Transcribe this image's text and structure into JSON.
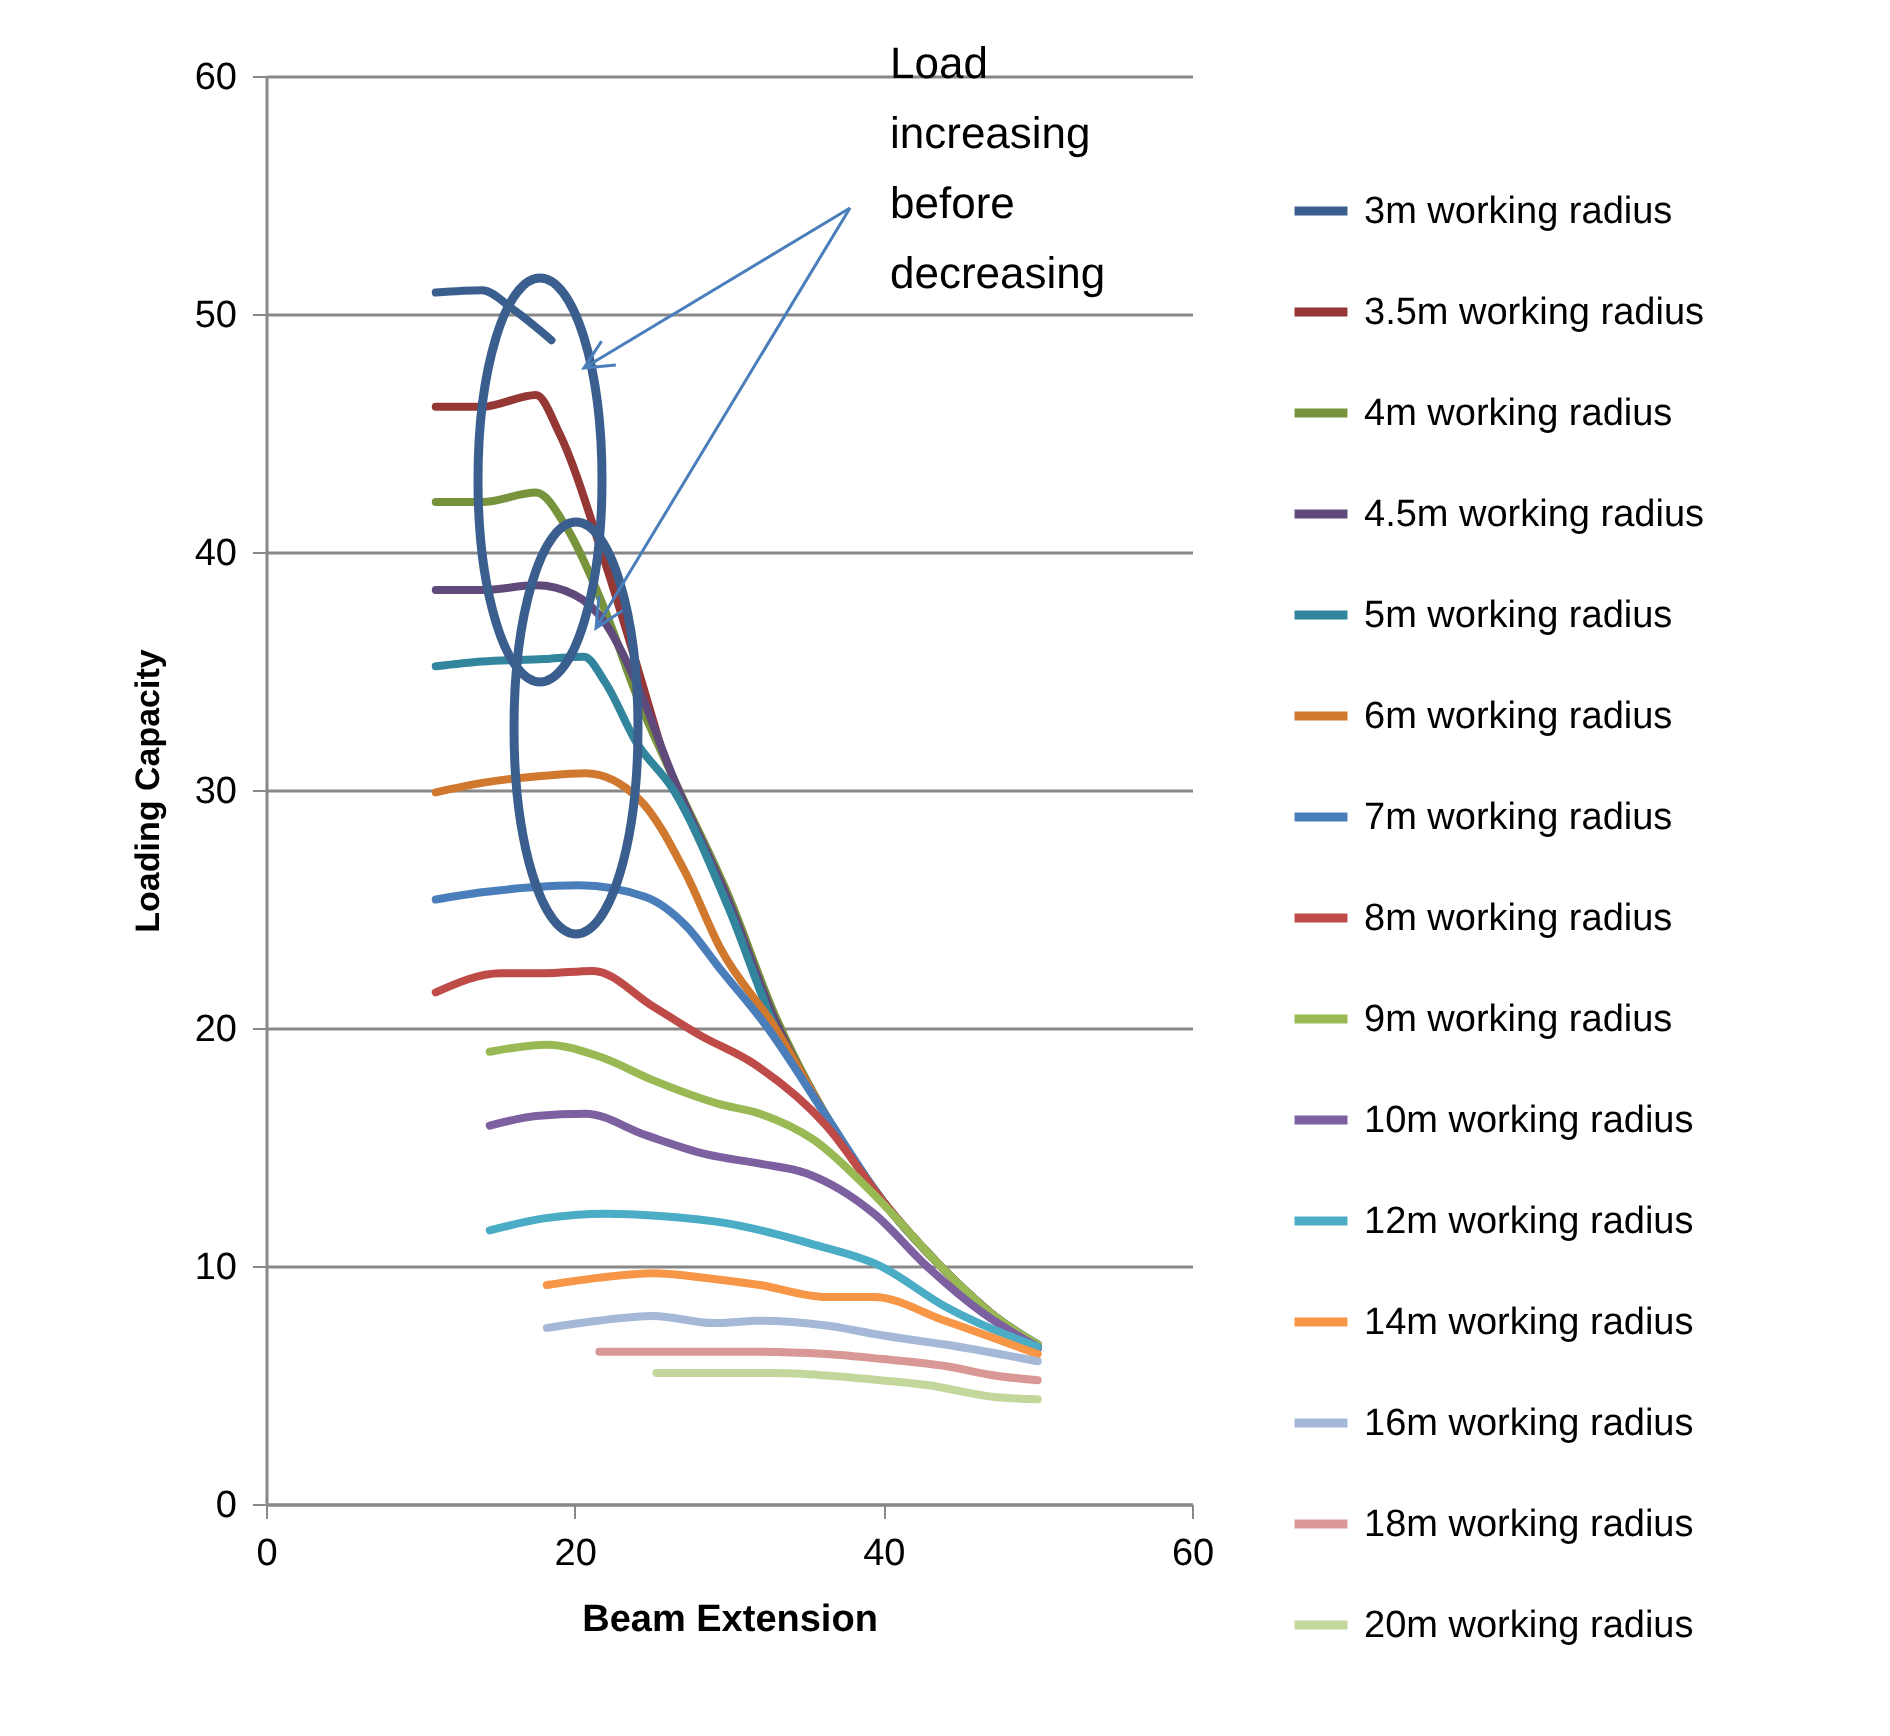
{
  "chart_data": {
    "type": "line",
    "xlabel": "Beam Extension",
    "ylabel": "Loading Capacity",
    "xlim": [
      0,
      60
    ],
    "ylim": [
      0,
      60
    ],
    "xticks": [
      0,
      20,
      40,
      60
    ],
    "yticks": [
      0,
      10,
      20,
      30,
      40,
      50,
      60
    ],
    "grid": "y",
    "legend": "right",
    "marker": "none",
    "line_style": "solid",
    "annotations": [
      "Load increasing before decreasing"
    ],
    "series": [
      {
        "name": "3m working radius",
        "color": "#3a5f8e",
        "x": [
          11,
          14,
          16,
          18.5
        ],
        "values": [
          50.9,
          51,
          50.2,
          48.9
        ]
      },
      {
        "name": "3.5m working radius",
        "color": "#953735",
        "x": [
          11,
          14,
          17.5,
          19,
          22,
          25.5
        ],
        "values": [
          46.1,
          46.1,
          46.6,
          45,
          39.5,
          32
        ]
      },
      {
        "name": "4m working radius",
        "color": "#77933c",
        "x": [
          11,
          14,
          17.5,
          19.5,
          22,
          24,
          26.4,
          30,
          33,
          36.3,
          40,
          43.7,
          47,
          50
        ],
        "values": [
          42.1,
          42.1,
          42.5,
          41,
          37.5,
          34,
          30.5,
          25.5,
          20.5,
          16.3,
          12.7,
          10,
          8,
          6.7
        ]
      },
      {
        "name": "4.5m working radius",
        "color": "#604a7b",
        "x": [
          11,
          14,
          17.5,
          20,
          22,
          24,
          26.4,
          30,
          33,
          36.3,
          40,
          43.7,
          47,
          50
        ],
        "values": [
          38.4,
          38.4,
          38.6,
          38.2,
          37,
          34.5,
          30.5,
          25.3,
          20.3,
          16.3,
          12.7,
          10,
          8,
          6.7
        ]
      },
      {
        "name": "5m working radius",
        "color": "#31859c",
        "x": [
          11,
          14,
          18,
          20.6,
          22,
          24,
          26.4,
          30,
          33,
          36.3,
          40,
          43.7,
          47,
          50
        ],
        "values": [
          35.2,
          35.4,
          35.5,
          35.6,
          34.5,
          32,
          30,
          25,
          20,
          16.3,
          12.7,
          10,
          8,
          6.7
        ]
      },
      {
        "name": "6m working radius",
        "color": "#d0782e",
        "x": [
          11,
          14,
          18,
          20.7,
          24.2,
          27.2,
          29.4,
          33,
          36.3,
          40,
          43.7,
          47,
          50
        ],
        "values": [
          29.9,
          30.3,
          30.6,
          30.7,
          29.6,
          26.5,
          23.4,
          20,
          16.3,
          12.7,
          10,
          8,
          6.6
        ]
      },
      {
        "name": "7m working radius",
        "color": "#4a7ebb",
        "x": [
          11,
          14,
          17,
          20.3,
          24.6,
          27.2,
          29.4,
          32.4,
          36.3,
          40,
          43.7,
          47,
          50
        ],
        "values": [
          25.4,
          25.7,
          25.9,
          26,
          25.5,
          24.3,
          22.5,
          20.1,
          16.3,
          12.7,
          10,
          8,
          6.5
        ]
      },
      {
        "name": "8m working radius",
        "color": "#be4b48",
        "x": [
          11,
          15.2,
          18,
          21.2,
          25.1,
          28.1,
          31.6,
          36.3,
          40,
          43.7,
          47,
          50
        ],
        "values": [
          21.5,
          22.3,
          22.3,
          22.4,
          20.9,
          19.7,
          18.5,
          15.9,
          12.7,
          10,
          8,
          6.6
        ]
      },
      {
        "name": "9m working radius",
        "color": "#98b954",
        "x": [
          14.5,
          18.2,
          21.6,
          25.1,
          29.4,
          32,
          35.5,
          39.4,
          43.7,
          47,
          50
        ],
        "values": [
          19,
          19.3,
          18.8,
          17.8,
          16.8,
          16.4,
          15.3,
          13,
          10,
          8,
          6.7
        ]
      },
      {
        "name": "10m working radius",
        "color": "#7d60a0",
        "x": [
          14.5,
          17.5,
          20.7,
          24.6,
          28.5,
          32,
          35,
          39.4,
          42.8,
          46.5,
          50
        ],
        "values": [
          15.9,
          16.3,
          16.4,
          15.5,
          14.7,
          14.3,
          13.9,
          12.2,
          10,
          8,
          6.6
        ]
      },
      {
        "name": "12m working radius",
        "color": "#4bacc6",
        "x": [
          14.5,
          18,
          22,
          25.5,
          29.8,
          35.5,
          39.8,
          44,
          50
        ],
        "values": [
          11.5,
          12,
          12.2,
          12.1,
          11.8,
          10.9,
          10,
          8.3,
          6.6
        ]
      },
      {
        "name": "14m working radius",
        "color": "#f79646",
        "x": [
          18.2,
          21.5,
          25.1,
          28.5,
          32,
          36.3,
          39.4,
          44,
          50
        ],
        "values": [
          9.2,
          9.5,
          9.7,
          9.5,
          9.2,
          8.7,
          8.7,
          7.7,
          6.3
        ]
      },
      {
        "name": "16m working radius",
        "color": "#a5b8d7",
        "x": [
          18.2,
          21.5,
          25.1,
          29,
          32,
          36.3,
          39.8,
          44,
          50
        ],
        "values": [
          7.4,
          7.7,
          7.9,
          7.6,
          7.7,
          7.5,
          7.1,
          6.7,
          6
        ]
      },
      {
        "name": "18m working radius",
        "color": "#d99795",
        "x": [
          21.6,
          26,
          32,
          36.3,
          39.8,
          44,
          47.2,
          50
        ],
        "values": [
          6.4,
          6.4,
          6.4,
          6.3,
          6.1,
          5.8,
          5.4,
          5.2
        ]
      },
      {
        "name": "20m working radius",
        "color": "#c3d69b",
        "x": [
          25.3,
          29,
          33,
          36.3,
          39.8,
          42.8,
          47.2,
          50
        ],
        "values": [
          5.5,
          5.5,
          5.5,
          5.4,
          5.2,
          5,
          4.5,
          4.4
        ]
      }
    ]
  }
}
